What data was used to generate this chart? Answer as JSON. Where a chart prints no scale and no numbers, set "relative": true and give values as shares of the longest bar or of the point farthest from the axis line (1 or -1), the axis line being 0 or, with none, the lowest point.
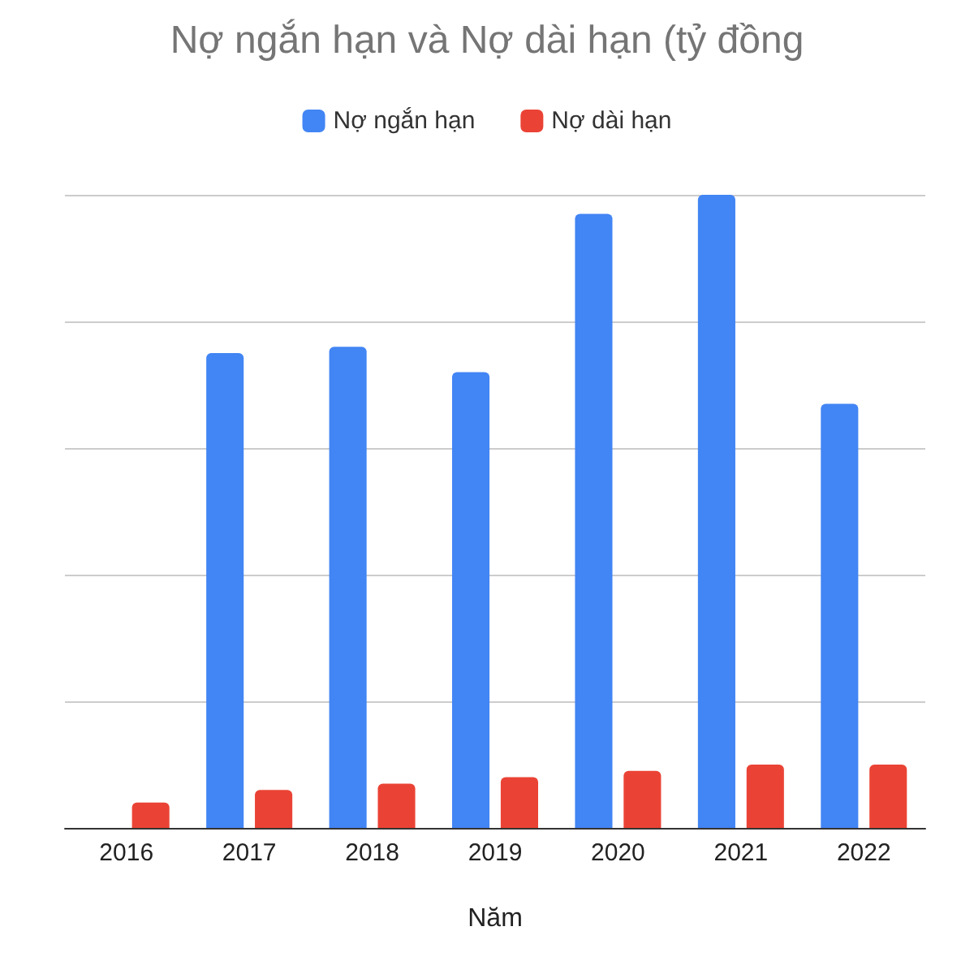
{
  "chart_data": {
    "type": "bar",
    "title": "Nợ ngắn hạn và Nợ dài hạn (tỷ đồng",
    "xlabel": "Năm",
    "categories": [
      "2016",
      "2017",
      "2018",
      "2019",
      "2020",
      "2021",
      "2022"
    ],
    "relative": true,
    "grid": "y",
    "legend": "top",
    "series": [
      {
        "name": "Nợ ngắn hạn",
        "color": "#4285f4",
        "values": [
          null,
          0.75,
          0.76,
          0.72,
          0.97,
          1,
          0.67
        ]
      },
      {
        "name": "Nợ dài hạn",
        "color": "#ea4335",
        "values": [
          0.04,
          0.06,
          0.07,
          0.08,
          0.09,
          0.1,
          0.1
        ]
      }
    ]
  }
}
